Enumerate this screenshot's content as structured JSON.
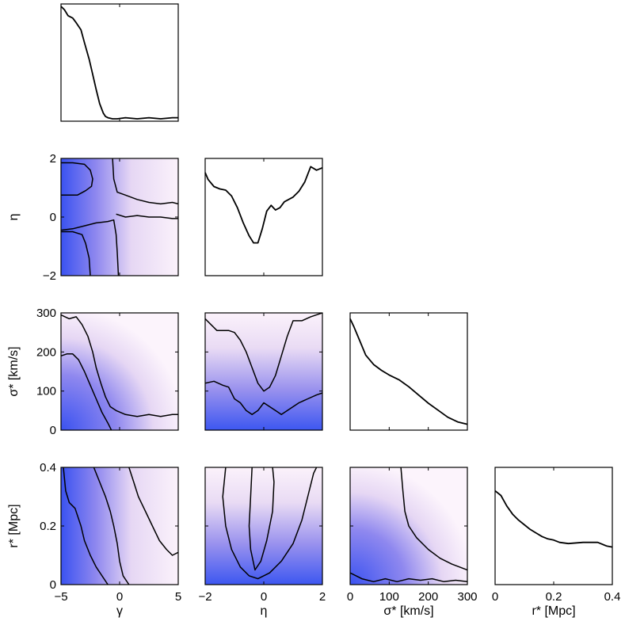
{
  "chart_data": {
    "type": "corner",
    "variables": [
      {
        "label": "γ",
        "range": [
          -5,
          5
        ],
        "ticks": [
          -5,
          0,
          5
        ]
      },
      {
        "label": "η",
        "range": [
          -2,
          2
        ],
        "ticks": [
          -2,
          0,
          2
        ]
      },
      {
        "label": "σ* [km/s]",
        "range": [
          0,
          300
        ],
        "ticks": [
          0,
          100,
          200,
          300
        ]
      },
      {
        "label": "r* [Mpc]",
        "range": [
          0,
          0.4
        ],
        "ticks": [
          0,
          0.2,
          0.4
        ]
      }
    ],
    "marginals": [
      {
        "variable": "γ",
        "x": [
          -5,
          -4.7,
          -4.4,
          -4,
          -3.7,
          -3.3,
          -3,
          -2.6,
          -2.3,
          -2,
          -1.7,
          -1.4,
          -1.2,
          -1,
          -0.6,
          -0.2,
          0.5,
          1.5,
          2.5,
          3.5,
          4.5,
          5
        ],
        "y": [
          0.98,
          0.95,
          0.9,
          0.88,
          0.84,
          0.78,
          0.67,
          0.53,
          0.4,
          0.27,
          0.15,
          0.07,
          0.04,
          0.03,
          0.02,
          0.02,
          0.03,
          0.02,
          0.03,
          0.02,
          0.03,
          0.03
        ]
      },
      {
        "variable": "η",
        "x": [
          -2,
          -1.9,
          -1.7,
          -1.5,
          -1.3,
          -1.1,
          -0.9,
          -0.7,
          -0.5,
          -0.35,
          -0.2,
          -0.05,
          0.1,
          0.25,
          0.4,
          0.55,
          0.7,
          0.85,
          1,
          1.2,
          1.4,
          1.6,
          1.8,
          2
        ],
        "y": [
          0.88,
          0.82,
          0.76,
          0.74,
          0.73,
          0.68,
          0.58,
          0.45,
          0.34,
          0.28,
          0.28,
          0.4,
          0.55,
          0.6,
          0.56,
          0.58,
          0.63,
          0.65,
          0.67,
          0.72,
          0.8,
          0.93,
          0.9,
          0.92
        ]
      },
      {
        "variable": "σ* [km/s]",
        "x": [
          0,
          10,
          25,
          40,
          60,
          80,
          100,
          125,
          150,
          175,
          200,
          225,
          250,
          275,
          300
        ],
        "y": [
          0.95,
          0.88,
          0.76,
          0.64,
          0.56,
          0.51,
          0.47,
          0.43,
          0.37,
          0.3,
          0.23,
          0.17,
          0.11,
          0.07,
          0.05
        ]
      },
      {
        "variable": "r* [Mpc]",
        "x": [
          0,
          0.02,
          0.04,
          0.06,
          0.08,
          0.1,
          0.12,
          0.14,
          0.16,
          0.18,
          0.2,
          0.22,
          0.25,
          0.3,
          0.35,
          0.38,
          0.4
        ],
        "y": [
          0.8,
          0.76,
          0.67,
          0.6,
          0.55,
          0.51,
          0.47,
          0.44,
          0.41,
          0.39,
          0.38,
          0.36,
          0.35,
          0.36,
          0.36,
          0.33,
          0.32
        ]
      }
    ],
    "joint": [
      {
        "x": "γ",
        "y": "η",
        "inner_contours": [
          [
            [
              -5,
              1.85
            ],
            [
              -4,
              1.85
            ],
            [
              -3,
              1.8
            ],
            [
              -2.5,
              1.6
            ],
            [
              -2.3,
              1.3
            ],
            [
              -2.4,
              1.05
            ],
            [
              -2.9,
              0.9
            ],
            [
              -3.6,
              0.75
            ],
            [
              -5,
              0.75
            ]
          ],
          [
            [
              -5,
              -0.5
            ],
            [
              -4,
              -0.5
            ],
            [
              -3.2,
              -0.6
            ],
            [
              -2.9,
              -0.9
            ],
            [
              -2.6,
              -1.4
            ],
            [
              -2.5,
              -2
            ]
          ]
        ],
        "outer_contours": [
          [
            [
              -5,
              -0.45
            ],
            [
              -4,
              -0.4
            ],
            [
              -3,
              -0.3
            ],
            [
              -2,
              -0.2
            ],
            [
              -1,
              -0.15
            ],
            [
              -0.5,
              -0.1
            ],
            [
              -0.3,
              -0.6
            ],
            [
              -0.2,
              -1.2
            ],
            [
              -0.1,
              -2
            ]
          ],
          [
            [
              -0.6,
              2
            ],
            [
              -0.5,
              1.3
            ],
            [
              -0.2,
              0.85
            ],
            [
              0.5,
              0.75
            ],
            [
              1.5,
              0.6
            ],
            [
              2.5,
              0.5
            ],
            [
              3.5,
              0.45
            ],
            [
              4.5,
              0.5
            ],
            [
              5,
              0.45
            ]
          ],
          [
            [
              -0.3,
              0.1
            ],
            [
              0.5,
              0.0
            ],
            [
              1.5,
              0.05
            ],
            [
              2.5,
              0.0
            ],
            [
              3.5,
              0.0
            ],
            [
              4.5,
              -0.05
            ],
            [
              5,
              -0.05
            ]
          ]
        ]
      },
      {
        "x": "γ",
        "y": "σ* [km/s]",
        "inner_contours": [
          [
            [
              -5,
              190
            ],
            [
              -4.5,
              195
            ],
            [
              -4,
              195
            ],
            [
              -3.5,
              180
            ],
            [
              -3,
              150
            ],
            [
              -2.5,
              115
            ],
            [
              -2,
              80
            ],
            [
              -1.5,
              45
            ],
            [
              -1,
              18
            ],
            [
              -0.7,
              0
            ]
          ]
        ],
        "outer_contours": [
          [
            [
              -5,
              295
            ],
            [
              -4.3,
              285
            ],
            [
              -3.7,
              290
            ],
            [
              -3.2,
              270
            ],
            [
              -2.7,
              240
            ],
            [
              -2.3,
              200
            ],
            [
              -2,
              160
            ],
            [
              -1.6,
              120
            ],
            [
              -1.2,
              85
            ],
            [
              -0.8,
              60
            ],
            [
              -0.3,
              50
            ],
            [
              0.5,
              40
            ],
            [
              1.5,
              35
            ],
            [
              2.5,
              40
            ],
            [
              3.5,
              35
            ],
            [
              4.5,
              40
            ],
            [
              5,
              40
            ]
          ]
        ]
      },
      {
        "x": "η",
        "y": "σ* [km/s]",
        "inner_contours": [
          [
            [
              -2,
              120
            ],
            [
              -1.7,
              125
            ],
            [
              -1.4,
              115
            ],
            [
              -1.2,
              110
            ],
            [
              -1,
              80
            ],
            [
              -0.8,
              70
            ],
            [
              -0.6,
              50
            ],
            [
              -0.4,
              40
            ],
            [
              -0.2,
              50
            ],
            [
              0,
              70
            ],
            [
              0.2,
              60
            ],
            [
              0.4,
              50
            ],
            [
              0.6,
              40
            ],
            [
              0.9,
              55
            ],
            [
              1.2,
              70
            ],
            [
              1.5,
              80
            ],
            [
              1.8,
              90
            ],
            [
              2,
              95
            ]
          ]
        ],
        "outer_contours": [
          [
            [
              -2,
              285
            ],
            [
              -1.8,
              270
            ],
            [
              -1.6,
              255
            ],
            [
              -1.2,
              255
            ],
            [
              -1,
              250
            ],
            [
              -0.8,
              230
            ],
            [
              -0.6,
              200
            ],
            [
              -0.4,
              160
            ],
            [
              -0.2,
              120
            ],
            [
              0,
              100
            ],
            [
              0.2,
              110
            ],
            [
              0.4,
              140
            ],
            [
              0.6,
              190
            ],
            [
              0.8,
              240
            ],
            [
              1,
              280
            ],
            [
              1.3,
              280
            ],
            [
              1.6,
              290
            ],
            [
              2,
              300
            ]
          ]
        ]
      },
      {
        "x": "γ",
        "y": "r* [Mpc]",
        "inner_contours": [
          [
            [
              -4.8,
              0.4
            ],
            [
              -4.6,
              0.32
            ],
            [
              -4.3,
              0.28
            ],
            [
              -3.8,
              0.26
            ],
            [
              -3.3,
              0.2
            ],
            [
              -3,
              0.15
            ],
            [
              -2.5,
              0.1
            ],
            [
              -2,
              0.06
            ],
            [
              -1.5,
              0.03
            ],
            [
              -1,
              0
            ]
          ]
        ],
        "outer_contours": [
          [
            [
              -2.2,
              0.4
            ],
            [
              -1.7,
              0.35
            ],
            [
              -1.2,
              0.3
            ],
            [
              -0.8,
              0.25
            ],
            [
              -0.5,
              0.2
            ],
            [
              -0.2,
              0.14
            ],
            [
              0,
              0.08
            ],
            [
              0.3,
              0.03
            ],
            [
              0.8,
              0
            ]
          ],
          [
            [
              0.8,
              0.4
            ],
            [
              1.2,
              0.35
            ],
            [
              1.6,
              0.3
            ],
            [
              2.2,
              0.25
            ],
            [
              2.8,
              0.2
            ],
            [
              3.4,
              0.15
            ],
            [
              4,
              0.12
            ],
            [
              4.5,
              0.1
            ],
            [
              5,
              0.11
            ]
          ]
        ]
      },
      {
        "x": "η",
        "y": "r* [Mpc]",
        "inner_contours": [
          [
            [
              -0.4,
              0.4
            ],
            [
              -0.45,
              0.3
            ],
            [
              -0.5,
              0.2
            ],
            [
              -0.45,
              0.12
            ],
            [
              -0.3,
              0.05
            ],
            [
              -0.1,
              0.08
            ],
            [
              0.1,
              0.15
            ],
            [
              0.3,
              0.25
            ],
            [
              0.35,
              0.35
            ],
            [
              0.3,
              0.4
            ]
          ]
        ],
        "outer_contours": [
          [
            [
              -1.3,
              0.4
            ],
            [
              -1.4,
              0.3
            ],
            [
              -1.3,
              0.2
            ],
            [
              -1.1,
              0.12
            ],
            [
              -0.8,
              0.06
            ],
            [
              -0.5,
              0.03
            ],
            [
              -0.2,
              0.02
            ],
            [
              0.2,
              0.04
            ],
            [
              0.6,
              0.08
            ],
            [
              1,
              0.14
            ],
            [
              1.3,
              0.22
            ],
            [
              1.5,
              0.3
            ],
            [
              1.7,
              0.38
            ],
            [
              1.8,
              0.4
            ]
          ]
        ]
      },
      {
        "x": "σ* [km/s]",
        "y": "r* [Mpc]",
        "inner_contours": [
          [
            [
              0,
              0.04
            ],
            [
              30,
              0.02
            ],
            [
              60,
              0.01
            ],
            [
              90,
              0.02
            ],
            [
              120,
              0.01
            ],
            [
              150,
              0.02
            ],
            [
              180,
              0.015
            ],
            [
              210,
              0.02
            ],
            [
              240,
              0.01
            ],
            [
              270,
              0.015
            ],
            [
              300,
              0.01
            ]
          ]
        ],
        "outer_contours": [
          [
            [
              130,
              0.4
            ],
            [
              135,
              0.32
            ],
            [
              140,
              0.25
            ],
            [
              150,
              0.2
            ],
            [
              170,
              0.16
            ],
            [
              200,
              0.12
            ],
            [
              230,
              0.09
            ],
            [
              260,
              0.07
            ],
            [
              300,
              0.05
            ]
          ]
        ]
      }
    ]
  }
}
